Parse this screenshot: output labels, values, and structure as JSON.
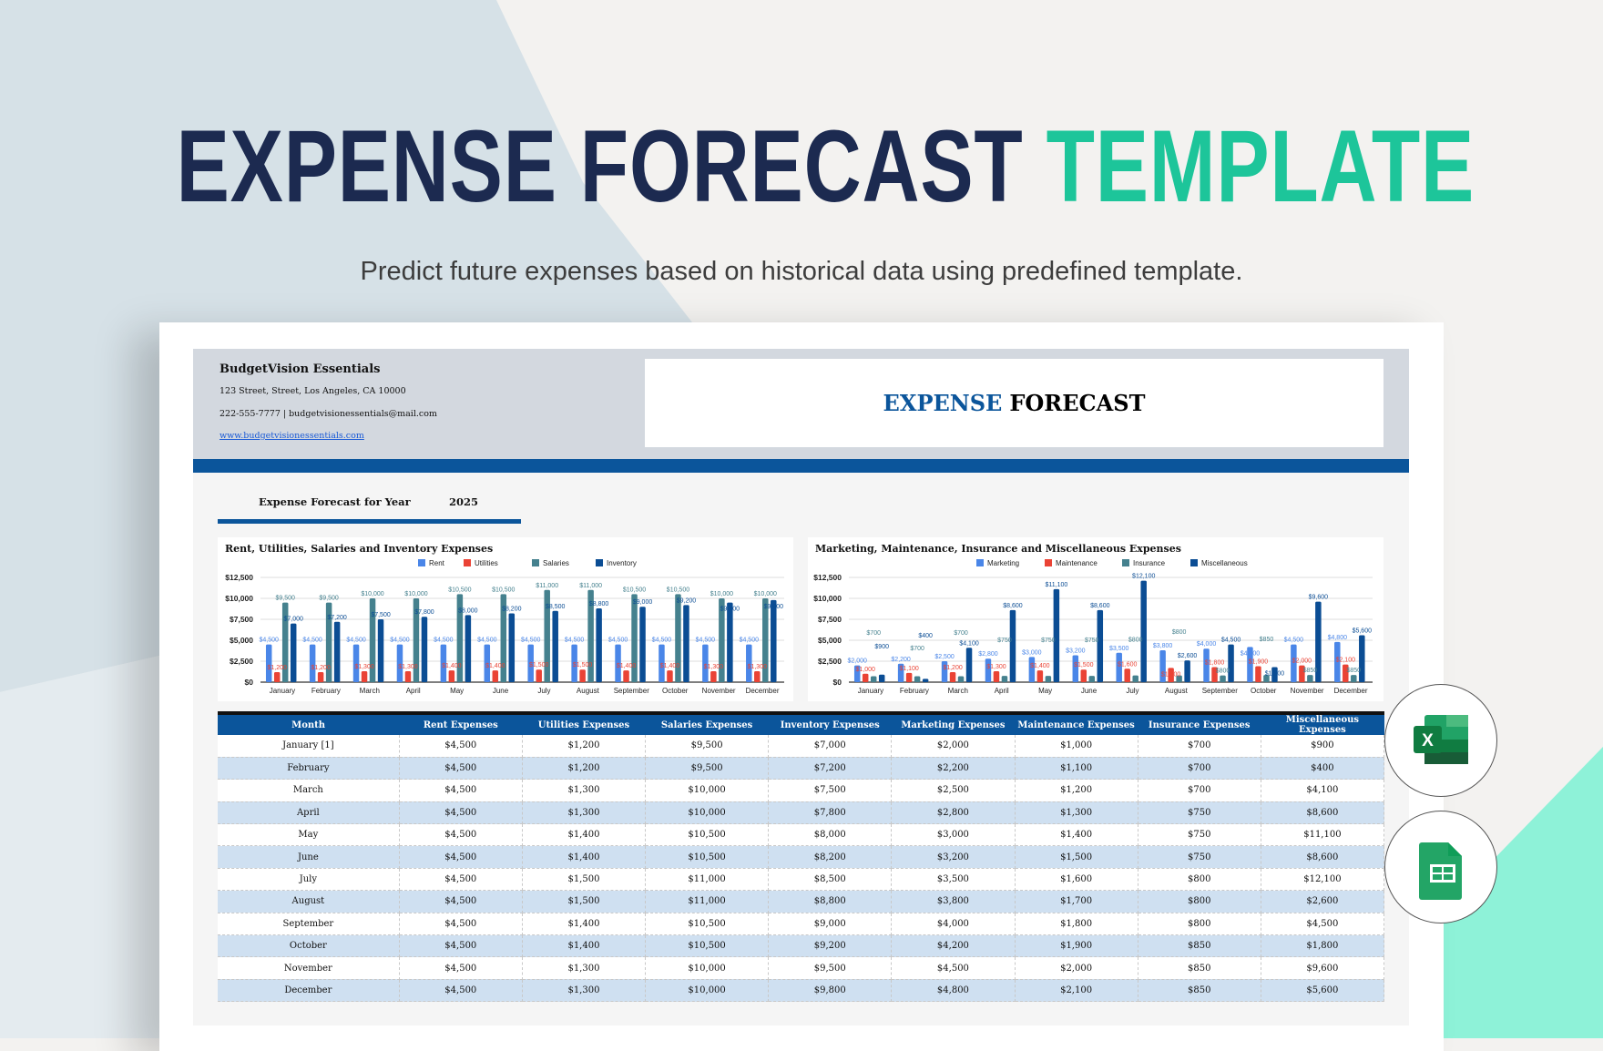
{
  "hero": {
    "title_main": "EXPENSE FORECAST",
    "title_accent": "TEMPLATE",
    "subtitle": "Predict future expenses based on historical data using predefined template."
  },
  "colors": {
    "navy": "#1c2a50",
    "accent": "#1dc59a",
    "brand_blue": "#0b559b",
    "row_alt": "#cfe0f1"
  },
  "company": {
    "name": "BudgetVision Essentials",
    "address": "123 Street, Street, Los Angeles, CA 10000",
    "contact": "222-555-7777 | budgetvisionessentials@mail.com",
    "website": "www.budgetvisionessentials.com"
  },
  "doc": {
    "title_a": "EXPENSE",
    "title_b": "FORECAST",
    "year_label": "Expense Forecast for Year",
    "year": "2025"
  },
  "chart_data": [
    {
      "type": "bar",
      "title": "Rent, Utilities, Salaries and Inventory Expenses",
      "legend": "top",
      "grid": true,
      "ylim": [
        0,
        12500
      ],
      "yticks": [
        "$0",
        "$2,500",
        "$5,000",
        "$7,500",
        "$10,000",
        "$12,500"
      ],
      "categories": [
        "January",
        "February",
        "March",
        "April",
        "May",
        "June",
        "July",
        "August",
        "September",
        "October",
        "November",
        "December"
      ],
      "series": [
        {
          "name": "Rent",
          "color": "#4a86e8",
          "values": [
            4500,
            4500,
            4500,
            4500,
            4500,
            4500,
            4500,
            4500,
            4500,
            4500,
            4500,
            4500
          ]
        },
        {
          "name": "Utilities",
          "color": "#ea4335",
          "values": [
            1200,
            1200,
            1300,
            1300,
            1400,
            1400,
            1500,
            1500,
            1400,
            1400,
            1300,
            1300
          ]
        },
        {
          "name": "Salaries",
          "color": "#45818e",
          "values": [
            9500,
            9500,
            10000,
            10000,
            10500,
            10500,
            11000,
            11000,
            10500,
            10500,
            10000,
            10000
          ]
        },
        {
          "name": "Inventory",
          "color": "#0b4d94",
          "values": [
            7000,
            7200,
            7500,
            7800,
            8000,
            8200,
            8500,
            8800,
            9000,
            9200,
            9500,
            9800
          ]
        }
      ]
    },
    {
      "type": "bar",
      "title": "Marketing, Maintenance, Insurance and Miscellaneous Expenses",
      "legend": "top",
      "grid": true,
      "ylim": [
        0,
        12500
      ],
      "yticks": [
        "$0",
        "$2,500",
        "$5,000",
        "$7,500",
        "$10,000",
        "$12,500"
      ],
      "categories": [
        "January",
        "February",
        "March",
        "April",
        "May",
        "June",
        "July",
        "August",
        "September",
        "October",
        "November",
        "December"
      ],
      "series": [
        {
          "name": "Marketing",
          "color": "#4a86e8",
          "values": [
            2000,
            2200,
            2500,
            2800,
            3000,
            3200,
            3500,
            3800,
            4000,
            4200,
            4500,
            4800
          ]
        },
        {
          "name": "Maintenance",
          "color": "#ea4335",
          "values": [
            1000,
            1100,
            1200,
            1300,
            1400,
            1500,
            1600,
            1700,
            1800,
            1900,
            2000,
            2100
          ]
        },
        {
          "name": "Insurance",
          "color": "#45818e",
          "values": [
            700,
            700,
            700,
            750,
            750,
            750,
            800,
            800,
            800,
            850,
            850,
            850
          ]
        },
        {
          "name": "Miscellaneous",
          "color": "#0b4d94",
          "values": [
            900,
            400,
            4100,
            8600,
            11100,
            8600,
            12100,
            2600,
            4500,
            1800,
            9600,
            5600
          ]
        }
      ]
    }
  ],
  "table": {
    "headers": [
      "Month",
      "Rent Expenses",
      "Utilities Expenses",
      "Salaries Expenses",
      "Inventory Expenses",
      "Marketing Expenses",
      "Maintenance Expenses",
      "Insurance Expenses",
      "Miscellaneous Expenses"
    ],
    "rows": [
      [
        "January [1]",
        "$4,500",
        "$1,200",
        "$9,500",
        "$7,000",
        "$2,000",
        "$1,000",
        "$700",
        "$900"
      ],
      [
        "February",
        "$4,500",
        "$1,200",
        "$9,500",
        "$7,200",
        "$2,200",
        "$1,100",
        "$700",
        "$400"
      ],
      [
        "March",
        "$4,500",
        "$1,300",
        "$10,000",
        "$7,500",
        "$2,500",
        "$1,200",
        "$700",
        "$4,100"
      ],
      [
        "April",
        "$4,500",
        "$1,300",
        "$10,000",
        "$7,800",
        "$2,800",
        "$1,300",
        "$750",
        "$8,600"
      ],
      [
        "May",
        "$4,500",
        "$1,400",
        "$10,500",
        "$8,000",
        "$3,000",
        "$1,400",
        "$750",
        "$11,100"
      ],
      [
        "June",
        "$4,500",
        "$1,400",
        "$10,500",
        "$8,200",
        "$3,200",
        "$1,500",
        "$750",
        "$8,600"
      ],
      [
        "July",
        "$4,500",
        "$1,500",
        "$11,000",
        "$8,500",
        "$3,500",
        "$1,600",
        "$800",
        "$12,100"
      ],
      [
        "August",
        "$4,500",
        "$1,500",
        "$11,000",
        "$8,800",
        "$3,800",
        "$1,700",
        "$800",
        "$2,600"
      ],
      [
        "September",
        "$4,500",
        "$1,400",
        "$10,500",
        "$9,000",
        "$4,000",
        "$1,800",
        "$800",
        "$4,500"
      ],
      [
        "October",
        "$4,500",
        "$1,400",
        "$10,500",
        "$9,200",
        "$4,200",
        "$1,900",
        "$850",
        "$1,800"
      ],
      [
        "November",
        "$4,500",
        "$1,300",
        "$10,000",
        "$9,500",
        "$4,500",
        "$2,000",
        "$850",
        "$9,600"
      ],
      [
        "December",
        "$4,500",
        "$1,300",
        "$10,000",
        "$9,800",
        "$4,800",
        "$2,100",
        "$850",
        "$5,600"
      ]
    ]
  },
  "icons": {
    "excel": "microsoft-excel-icon",
    "sheets": "google-sheets-icon"
  }
}
